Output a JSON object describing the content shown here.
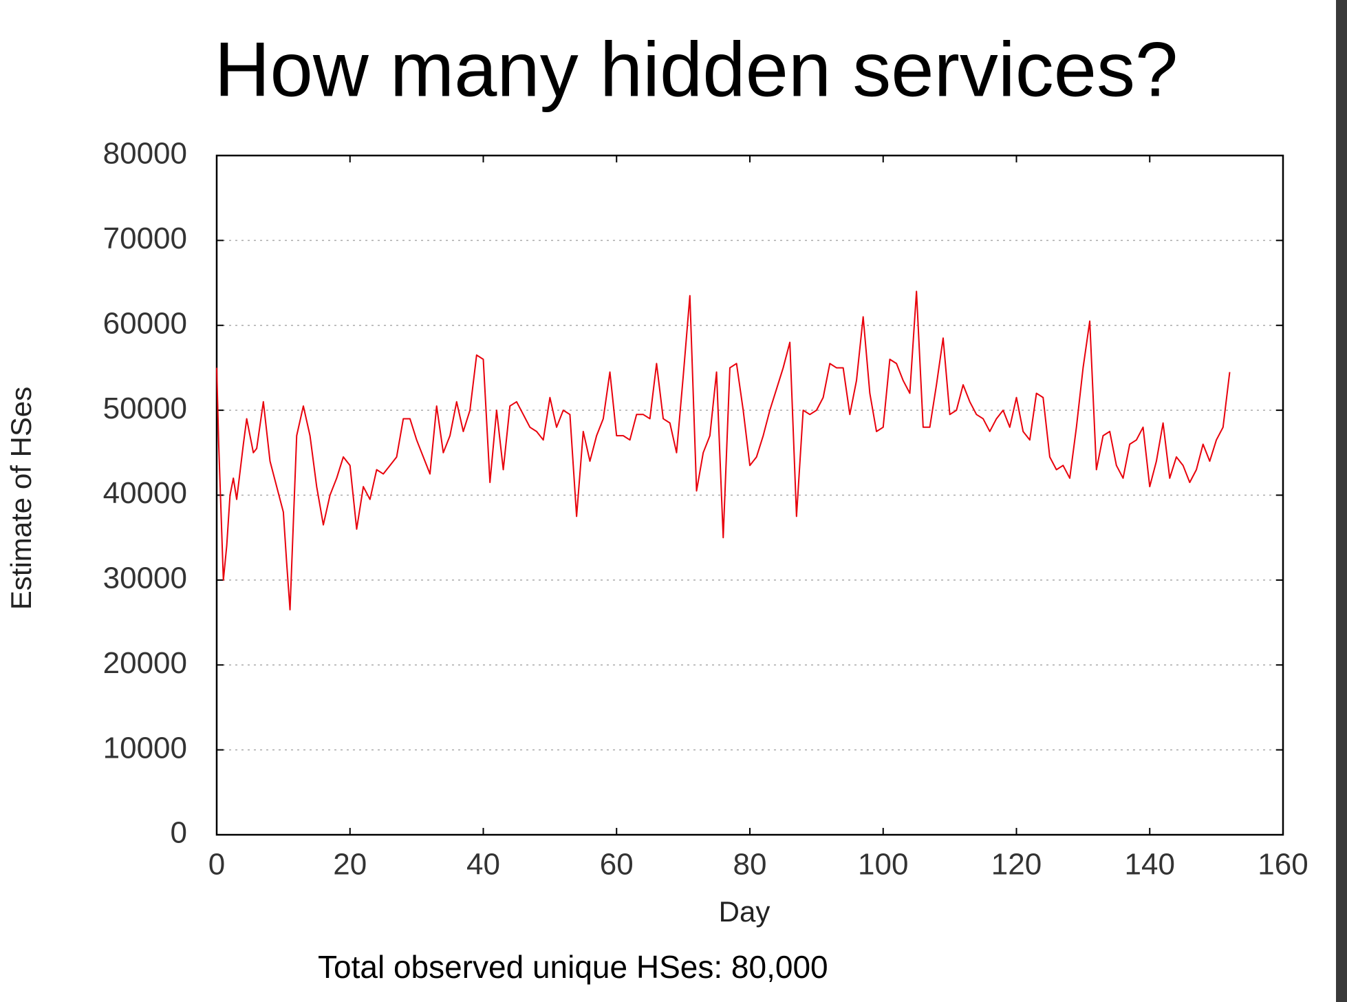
{
  "chart_data": {
    "type": "line",
    "title": "How many hidden services?",
    "xlabel": "Day",
    "ylabel": "Estimate of HSes",
    "note": "Total observed unique HSes: 80,000",
    "color": "#e8000b",
    "grid": true,
    "xlim": [
      0,
      160
    ],
    "xticks": [
      0,
      20,
      40,
      60,
      80,
      100,
      120,
      140,
      160
    ],
    "ylim": [
      0,
      80000
    ],
    "yticks": [
      0,
      10000,
      20000,
      30000,
      40000,
      50000,
      60000,
      70000,
      80000
    ],
    "x": [
      0,
      0.3,
      1,
      1.5,
      2,
      2.5,
      3,
      4,
      4.5,
      5,
      5.5,
      6,
      7,
      8,
      9,
      10,
      10.5,
      11,
      12,
      13,
      14,
      15,
      16,
      17,
      18,
      19,
      20,
      21,
      22,
      23,
      24,
      25,
      26,
      27,
      28,
      29,
      30,
      31,
      32,
      33,
      34,
      35,
      36,
      37,
      38,
      39,
      40,
      41,
      42,
      43,
      44,
      45,
      46,
      47,
      48,
      49,
      50,
      51,
      52,
      53,
      54,
      55,
      56,
      57,
      58,
      59,
      60,
      61,
      62,
      63,
      64,
      65,
      66,
      67,
      68,
      69,
      70,
      71,
      72,
      73,
      74,
      75,
      76,
      77,
      78,
      79,
      80,
      81,
      82,
      83,
      84,
      85,
      86,
      87,
      88,
      89,
      90,
      91,
      92,
      93,
      94,
      95,
      96,
      97,
      98,
      99,
      100,
      101,
      102,
      103,
      104,
      105,
      106,
      107,
      108,
      109,
      110,
      111,
      112,
      113,
      114,
      115,
      116,
      117,
      118,
      119,
      120,
      121,
      122,
      123,
      124,
      125,
      126,
      127,
      128,
      129,
      130,
      131,
      132,
      133,
      134,
      135,
      136,
      137,
      138,
      139,
      140,
      141,
      142,
      143,
      144,
      145,
      146,
      147,
      148,
      149,
      150,
      151,
      152
    ],
    "values": [
      55000,
      46000,
      30000,
      34000,
      40000,
      42000,
      39500,
      46000,
      49000,
      47000,
      45000,
      45500,
      51000,
      44000,
      41000,
      38000,
      32000,
      26500,
      47000,
      50500,
      47000,
      41000,
      36500,
      40000,
      42000,
      44500,
      43500,
      36000,
      41000,
      39500,
      43000,
      42500,
      43500,
      44500,
      49000,
      49000,
      46500,
      44500,
      42500,
      50500,
      45000,
      47000,
      51000,
      47500,
      50000,
      56500,
      56000,
      41500,
      50000,
      43000,
      50500,
      51000,
      49500,
      48000,
      47500,
      46500,
      51500,
      48000,
      50000,
      49500,
      37500,
      47500,
      44000,
      47000,
      49000,
      54500,
      47000,
      47000,
      46500,
      49500,
      49500,
      49000,
      55500,
      49000,
      48500,
      45000,
      54000,
      63500,
      40500,
      45000,
      47000,
      54500,
      35000,
      55000,
      55500,
      50000,
      43500,
      44500,
      47000,
      50000,
      52500,
      55000,
      58000,
      37500,
      50000,
      49500,
      50000,
      51500,
      55500,
      55000,
      55000,
      49500,
      53500,
      61000,
      52000,
      47500,
      48000,
      56000,
      55500,
      53500,
      52000,
      64000,
      48000,
      48000,
      53000,
      58500,
      49500,
      50000,
      53000,
      51000,
      49500,
      49000,
      47500,
      49000,
      50000,
      48000,
      51500,
      47500,
      46500,
      52000,
      51500,
      44500,
      43000,
      43500,
      42000,
      48000,
      55000,
      60500,
      43000,
      47000,
      47500,
      43500,
      42000,
      46000,
      46500,
      48000,
      41000,
      44000,
      48500,
      42000,
      44500,
      43500,
      41500,
      43000,
      46000,
      44000,
      46500,
      48000,
      54500
    ]
  }
}
